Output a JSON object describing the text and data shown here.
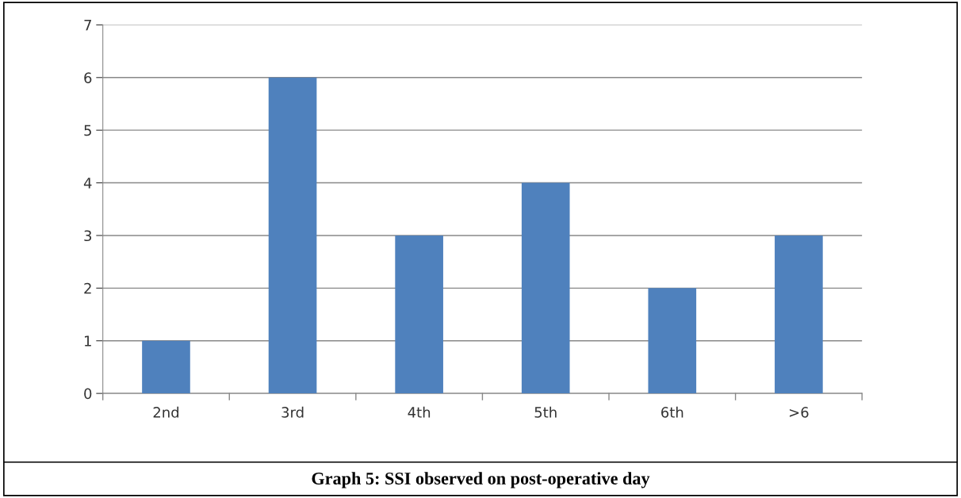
{
  "chart_data": {
    "type": "bar",
    "title": "Graph 5: SSI observed on post-operative day",
    "categories": [
      "2nd",
      "3rd",
      "4th",
      "5th",
      "6th",
      ">6"
    ],
    "values": [
      1,
      6,
      3,
      4,
      2,
      3
    ],
    "color": "#4f81bd",
    "ylim": [
      0,
      7
    ],
    "yticks": [
      0,
      1,
      2,
      3,
      4,
      5,
      6,
      7
    ],
    "grid": "y",
    "legend": false
  }
}
